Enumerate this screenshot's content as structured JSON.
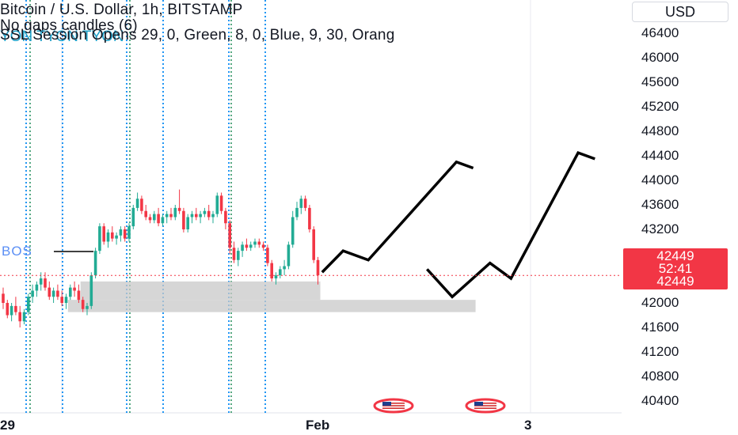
{
  "legend": {
    "line1": "Bitcoin / U.S. Dollar, 1h, BITSTAMP",
    "line2": "No gaps candles (6)",
    "line3": "SSL Session Opens 29, 0, Green, 8, 0, Blue, 9, 30, Orang",
    "strike_text": "YON TYON TYON"
  },
  "currency_button": "USD",
  "annotation": {
    "bos": "BOS"
  },
  "price_tags": {
    "last": "42449",
    "countdown": "52:41",
    "line": "42449"
  },
  "colors": {
    "up": "#22ab94",
    "down": "#f23645",
    "session_line": "#2196f3",
    "zone": "#c8c8c8"
  },
  "chart_data": {
    "type": "candlestick",
    "title": "Bitcoin / U.S. Dollar, 1h, BITSTAMP",
    "ylim": [
      40200,
      46800
    ],
    "yticks": [
      46400,
      46000,
      45600,
      45200,
      44800,
      44400,
      44000,
      43600,
      43200,
      42000,
      41600,
      41200,
      40800,
      40400
    ],
    "xticks": [
      "29",
      "Feb",
      "3"
    ],
    "last_price": 42449,
    "candles": [
      [
        42150,
        42250,
        41900,
        42000
      ],
      [
        42000,
        42050,
        41750,
        41800
      ],
      [
        41800,
        42000,
        41700,
        41950
      ],
      [
        41950,
        42100,
        41800,
        41850
      ],
      [
        41850,
        41950,
        41600,
        41700
      ],
      [
        41700,
        41900,
        41650,
        41850
      ],
      [
        41850,
        42150,
        41800,
        42100
      ],
      [
        42100,
        42300,
        42000,
        42200
      ],
      [
        42200,
        42350,
        42100,
        42300
      ],
      [
        42300,
        42500,
        42200,
        42400
      ],
      [
        42400,
        42500,
        42200,
        42250
      ],
      [
        42250,
        42350,
        42050,
        42100
      ],
      [
        42100,
        42250,
        42000,
        42200
      ],
      [
        42200,
        42300,
        42050,
        42100
      ],
      [
        42100,
        42200,
        41950,
        42000
      ],
      [
        42000,
        42150,
        41900,
        42100
      ],
      [
        42100,
        42300,
        42050,
        42250
      ],
      [
        42250,
        42350,
        42100,
        42200
      ],
      [
        42200,
        42300,
        42000,
        42050
      ],
      [
        42050,
        42100,
        41850,
        41900
      ],
      [
        41900,
        42000,
        41800,
        41950
      ],
      [
        41950,
        42500,
        41900,
        42450
      ],
      [
        42450,
        42900,
        42400,
        42850
      ],
      [
        42850,
        43300,
        42800,
        43250
      ],
      [
        43250,
        43300,
        42950,
        43000
      ],
      [
        43000,
        43200,
        42900,
        43150
      ],
      [
        43150,
        43250,
        43000,
        43050
      ],
      [
        43050,
        43150,
        42950,
        43100
      ],
      [
        43100,
        43250,
        43000,
        43200
      ],
      [
        43200,
        43250,
        43000,
        43050
      ],
      [
        43050,
        43300,
        43000,
        43250
      ],
      [
        43250,
        43600,
        43200,
        43550
      ],
      [
        43550,
        43800,
        43500,
        43700
      ],
      [
        43700,
        43750,
        43450,
        43500
      ],
      [
        43500,
        43600,
        43350,
        43400
      ],
      [
        43400,
        43450,
        43300,
        43350
      ],
      [
        43350,
        43500,
        43300,
        43450
      ],
      [
        43450,
        43550,
        43250,
        43300
      ],
      [
        43300,
        43450,
        43250,
        43400
      ],
      [
        43400,
        43500,
        43300,
        43450
      ],
      [
        43450,
        43550,
        43350,
        43400
      ],
      [
        43400,
        43600,
        43350,
        43550
      ],
      [
        43550,
        43850,
        43450,
        43500
      ],
      [
        43500,
        43550,
        43150,
        43200
      ],
      [
        43200,
        43450,
        43150,
        43400
      ],
      [
        43400,
        43500,
        43300,
        43450
      ],
      [
        43450,
        43550,
        43350,
        43400
      ],
      [
        43400,
        43500,
        43300,
        43450
      ],
      [
        43450,
        43550,
        43400,
        43500
      ],
      [
        43500,
        43600,
        43350,
        43400
      ],
      [
        43400,
        43500,
        43300,
        43450
      ],
      [
        43450,
        43800,
        43400,
        43750
      ],
      [
        43750,
        43800,
        43450,
        43500
      ],
      [
        43500,
        43550,
        43200,
        43300
      ],
      [
        43300,
        43350,
        42800,
        42900
      ],
      [
        42900,
        43000,
        42650,
        42700
      ],
      [
        42700,
        42900,
        42600,
        42850
      ],
      [
        42850,
        43000,
        42750,
        42950
      ],
      [
        42950,
        43050,
        42850,
        42900
      ],
      [
        42900,
        43000,
        42850,
        42950
      ],
      [
        42950,
        43050,
        42900,
        43000
      ],
      [
        43000,
        43050,
        42900,
        42950
      ],
      [
        42950,
        43000,
        42850,
        42900
      ],
      [
        42900,
        42950,
        42600,
        42650
      ],
      [
        42650,
        42700,
        42350,
        42400
      ],
      [
        42400,
        42500,
        42300,
        42450
      ],
      [
        42450,
        42600,
        42400,
        42550
      ],
      [
        42550,
        42700,
        42450,
        42600
      ],
      [
        42600,
        43000,
        42550,
        42950
      ],
      [
        42950,
        43500,
        42900,
        43400
      ],
      [
        43400,
        43650,
        43350,
        43550
      ],
      [
        43550,
        43750,
        43450,
        43700
      ],
      [
        43700,
        43750,
        43500,
        43550
      ],
      [
        43550,
        43600,
        43150,
        43200
      ],
      [
        43200,
        43250,
        42650,
        42700
      ],
      [
        42700,
        42750,
        42300,
        42449
      ]
    ],
    "zones": [
      {
        "from_index": 19,
        "to_index": 75,
        "top": 42350,
        "bottom": 42050
      },
      {
        "from_index": 16,
        "to_index": 112,
        "top": 42050,
        "bottom": 41850
      }
    ],
    "bos_level": 42800,
    "projections": [
      {
        "points": [
          [
            76,
            42500
          ],
          [
            81,
            42850
          ],
          [
            87,
            42700
          ],
          [
            108,
            44300
          ],
          [
            112,
            44200
          ]
        ]
      },
      {
        "points": [
          [
            101,
            42550
          ],
          [
            107,
            42100
          ],
          [
            116,
            42650
          ],
          [
            121,
            42400
          ],
          [
            137,
            44450
          ],
          [
            141,
            44350
          ]
        ]
      }
    ]
  }
}
